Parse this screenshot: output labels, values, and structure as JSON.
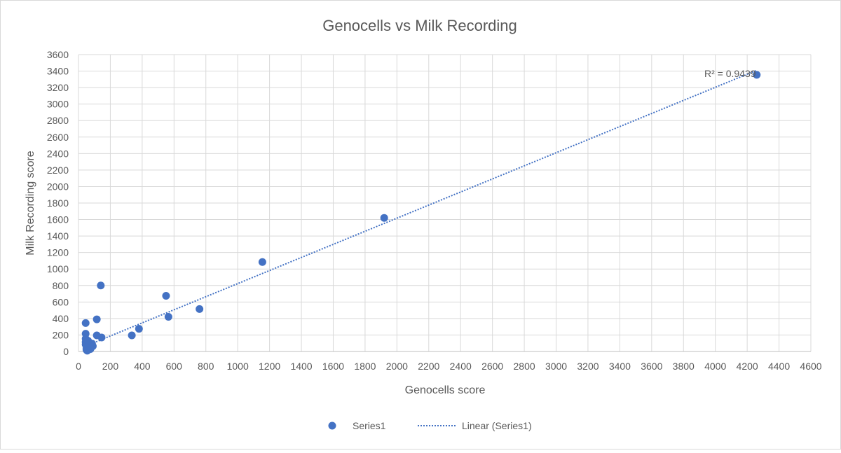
{
  "chart_data": {
    "type": "scatter",
    "title": "Genocells vs Milk Recording",
    "xlabel": "Genocells score",
    "ylabel": "Milk Recording  score",
    "xlim": [
      0,
      4600
    ],
    "ylim": [
      0,
      3600
    ],
    "x_ticks": [
      0,
      200,
      400,
      600,
      800,
      1000,
      1200,
      1400,
      1600,
      1800,
      2000,
      2200,
      2400,
      2600,
      2800,
      3000,
      3200,
      3400,
      3600,
      3800,
      4000,
      4200,
      4400,
      4600
    ],
    "y_ticks": [
      0,
      200,
      400,
      600,
      800,
      1000,
      1200,
      1400,
      1600,
      1800,
      2000,
      2200,
      2400,
      2600,
      2800,
      3000,
      3200,
      3400,
      3600
    ],
    "grid": true,
    "legend_position": "bottom",
    "series": [
      {
        "name": "Series1",
        "color": "#4472c4",
        "points": [
          [
            4260,
            3355
          ],
          [
            1920,
            1620
          ],
          [
            1155,
            1085
          ],
          [
            760,
            515
          ],
          [
            565,
            420
          ],
          [
            550,
            675
          ],
          [
            380,
            275
          ],
          [
            335,
            195
          ],
          [
            140,
            800
          ],
          [
            145,
            170
          ],
          [
            115,
            390
          ],
          [
            115,
            195
          ],
          [
            45,
            345
          ],
          [
            45,
            215
          ],
          [
            45,
            155
          ],
          [
            45,
            115
          ],
          [
            45,
            85
          ],
          [
            50,
            60
          ],
          [
            50,
            40
          ],
          [
            50,
            20
          ],
          [
            55,
            10
          ],
          [
            65,
            105
          ],
          [
            70,
            75
          ],
          [
            80,
            50
          ],
          [
            85,
            95
          ],
          [
            90,
            65
          ],
          [
            60,
            130
          ],
          [
            75,
            30
          ]
        ]
      }
    ],
    "trendline": {
      "name": "Linear (Series1)",
      "type": "linear",
      "color": "#4472c4",
      "x_range": [
        45,
        4260
      ],
      "y_range": [
        65,
        3410
      ],
      "r2_label": "R² = 0.9439"
    }
  }
}
